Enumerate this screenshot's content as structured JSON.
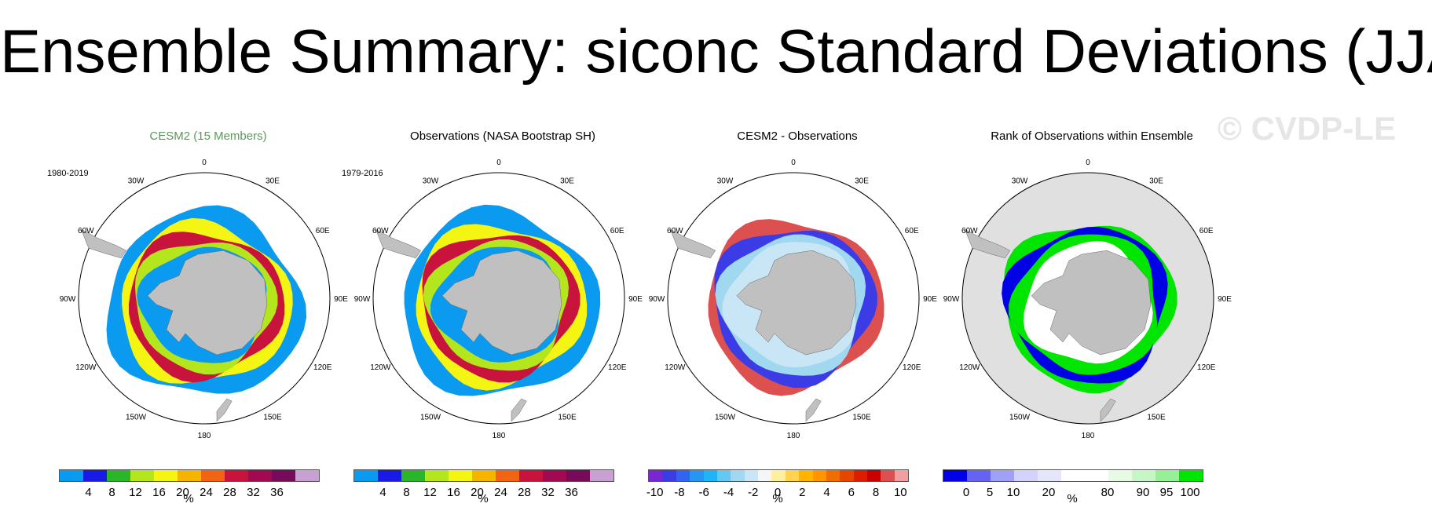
{
  "title": "Ensemble Summary: siconc Standard Deviations (JJA)",
  "watermark": "© CVDP-LE",
  "longitude_labels": [
    "0",
    "30E",
    "60E",
    "90E",
    "120E",
    "150E",
    "180",
    "150W",
    "120W",
    "90W",
    "60W",
    "30W"
  ],
  "colors": {
    "land": "#c0c0c0",
    "ocean": "#ffffff",
    "missing_ocean": "#e0e0e0",
    "title_cesm": "#5a9a5a"
  },
  "panels": [
    {
      "title": "CESM2 (15 Members)",
      "years": "1980-2019",
      "colorbar": {
        "colors": [
          "#0a9bf0",
          "#1a1ae6",
          "#2ab52a",
          "#b4e61e",
          "#f5f514",
          "#f5b400",
          "#f06414",
          "#c8143c",
          "#a00a50",
          "#780a5a",
          "#c8a0d2"
        ],
        "ticks": [
          "4",
          "8",
          "12",
          "16",
          "20",
          "24",
          "28",
          "32",
          "36"
        ],
        "unit": "%"
      }
    },
    {
      "title": "Observations (NASA Bootstrap SH)",
      "years": "1979-2016",
      "colorbar": {
        "colors": [
          "#0a9bf0",
          "#1a1ae6",
          "#2ab52a",
          "#b4e61e",
          "#f5f514",
          "#f5b400",
          "#f06414",
          "#c8143c",
          "#a00a50",
          "#780a5a",
          "#c8a0d2"
        ],
        "ticks": [
          "4",
          "8",
          "12",
          "16",
          "20",
          "24",
          "28",
          "32",
          "36"
        ],
        "unit": "%"
      }
    },
    {
      "title": "CESM2 - Observations",
      "years": "",
      "colorbar": {
        "colors": [
          "#7828d2",
          "#3c3ce6",
          "#3264f0",
          "#2896f0",
          "#1eb4f5",
          "#64c8f0",
          "#a0d8f0",
          "#c8e6f5",
          "#f5f5f5",
          "#fff0a0",
          "#ffd250",
          "#ffb400",
          "#ff9600",
          "#f06e00",
          "#e64600",
          "#dc1e00",
          "#c80000",
          "#dc5050",
          "#f0a0a0"
        ],
        "ticks": [
          "-10",
          "-8",
          "-6",
          "-4",
          "-2",
          "0",
          "2",
          "4",
          "6",
          "8",
          "10"
        ],
        "unit": "%"
      }
    },
    {
      "title": "Rank of Observations within Ensemble",
      "years": "",
      "colorbar": {
        "colors": [
          "#0000e6",
          "#6464f0",
          "#a0a0f5",
          "#d2d2fa",
          "#e6e6fa",
          "#ffffff",
          "#ffffff",
          "#e6fae6",
          "#c8f5c8",
          "#96f096",
          "#00e600"
        ],
        "ticks": [
          "0",
          "5",
          "10",
          "20",
          "80",
          "90",
          "95",
          "100"
        ],
        "unit": "%"
      }
    }
  ]
}
